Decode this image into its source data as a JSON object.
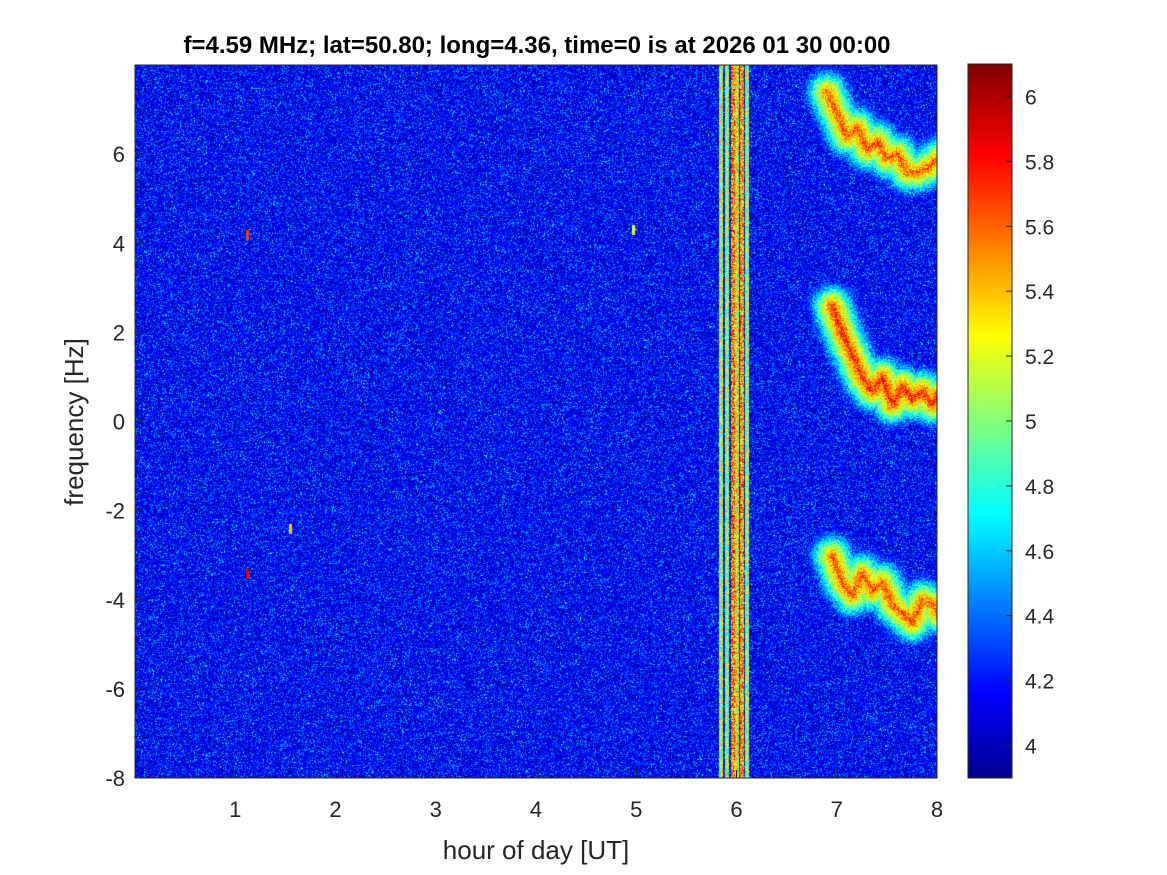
{
  "chart_data": {
    "type": "heatmap",
    "title": "f=4.59 MHz;  lat=50.80; long=4.36, time=0 is at 2026 01 30 00:00",
    "xlabel": "hour of day [UT]",
    "ylabel": "frequency [Hz]",
    "xlim": [
      0,
      8
    ],
    "ylim": [
      -8,
      8
    ],
    "xticks": [
      {
        "value": 1,
        "label": "1"
      },
      {
        "value": 2,
        "label": "2"
      },
      {
        "value": 3,
        "label": "3"
      },
      {
        "value": 4,
        "label": "4"
      },
      {
        "value": 5,
        "label": "5"
      },
      {
        "value": 6,
        "label": "6"
      },
      {
        "value": 7,
        "label": "7"
      },
      {
        "value": 8,
        "label": "8"
      }
    ],
    "yticks": [
      {
        "value": -8,
        "label": "-8"
      },
      {
        "value": -6,
        "label": "-6"
      },
      {
        "value": -4,
        "label": "-4"
      },
      {
        "value": -2,
        "label": "-2"
      },
      {
        "value": 0,
        "label": "0"
      },
      {
        "value": 2,
        "label": "2"
      },
      {
        "value": 4,
        "label": "4"
      },
      {
        "value": 6,
        "label": "6"
      }
    ],
    "colorbar": {
      "colormap": "jet",
      "clim": [
        3.9,
        6.1
      ],
      "ticks": [
        {
          "value": 4,
          "label": "4"
        },
        {
          "value": 4.2,
          "label": "4.2"
        },
        {
          "value": 4.4,
          "label": "4.4"
        },
        {
          "value": 4.6,
          "label": "4.6"
        },
        {
          "value": 4.8,
          "label": "4.8"
        },
        {
          "value": 5,
          "label": "5"
        },
        {
          "value": 5.2,
          "label": "5.2"
        },
        {
          "value": 5.4,
          "label": "5.4"
        },
        {
          "value": 5.6,
          "label": "5.6"
        },
        {
          "value": 5.8,
          "label": "5.8"
        },
        {
          "value": 6,
          "label": "6"
        }
      ]
    },
    "background_level": 4.1,
    "vertical_bands": [
      {
        "x_start": 5.82,
        "x_end": 5.86,
        "level": 5.6
      },
      {
        "x_start": 5.88,
        "x_end": 5.92,
        "level": 5.5
      },
      {
        "x_start": 5.94,
        "x_end": 5.98,
        "level": 6.0
      },
      {
        "x_start": 5.98,
        "x_end": 6.02,
        "level": 5.7
      },
      {
        "x_start": 6.03,
        "x_end": 6.07,
        "level": 5.9
      },
      {
        "x_start": 6.08,
        "x_end": 6.12,
        "level": 5.5
      }
    ],
    "traces": [
      {
        "points": [
          [
            6.9,
            7.4
          ],
          [
            7.0,
            6.9
          ],
          [
            7.1,
            6.4
          ],
          [
            7.2,
            6.6
          ],
          [
            7.3,
            6.1
          ],
          [
            7.4,
            6.3
          ],
          [
            7.5,
            5.9
          ],
          [
            7.6,
            6.0
          ],
          [
            7.7,
            5.6
          ],
          [
            7.8,
            5.6
          ],
          [
            7.9,
            5.7
          ],
          [
            8.0,
            5.9
          ]
        ],
        "level": 5.9
      },
      {
        "points": [
          [
            6.95,
            2.6
          ],
          [
            7.05,
            2.0
          ],
          [
            7.15,
            1.5
          ],
          [
            7.25,
            1.0
          ],
          [
            7.35,
            0.7
          ],
          [
            7.45,
            1.0
          ],
          [
            7.55,
            0.4
          ],
          [
            7.65,
            0.8
          ],
          [
            7.75,
            0.5
          ],
          [
            7.85,
            0.7
          ],
          [
            7.95,
            0.4
          ],
          [
            8.0,
            0.6
          ]
        ],
        "level": 6.0
      },
      {
        "points": [
          [
            6.95,
            -3.0
          ],
          [
            7.05,
            -3.6
          ],
          [
            7.15,
            -3.9
          ],
          [
            7.25,
            -3.4
          ],
          [
            7.35,
            -3.8
          ],
          [
            7.45,
            -3.6
          ],
          [
            7.55,
            -4.1
          ],
          [
            7.65,
            -4.3
          ],
          [
            7.75,
            -4.5
          ],
          [
            7.85,
            -4.0
          ],
          [
            7.95,
            -4.1
          ],
          [
            8.0,
            -4.3
          ]
        ],
        "level": 5.9
      }
    ],
    "spikes": [
      {
        "x": 1.12,
        "y": 4.2,
        "level": 5.7
      },
      {
        "x": 1.12,
        "y": -3.4,
        "level": 5.9
      },
      {
        "x": 1.55,
        "y": -2.4,
        "level": 5.4
      },
      {
        "x": 4.97,
        "y": 4.3,
        "level": 5.2
      }
    ],
    "grid": false,
    "legend": "none"
  }
}
